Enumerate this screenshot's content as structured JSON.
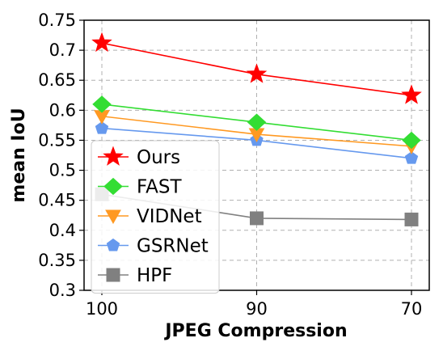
{
  "chart_data": {
    "type": "line",
    "categories": [
      "100",
      "90",
      "70"
    ],
    "xlabel": "JPEG Compression",
    "ylabel": "mean IoU",
    "ylim": [
      0.3,
      0.75
    ],
    "yticks": [
      "0.3",
      "0.35",
      "0.4",
      "0.45",
      "0.5",
      "0.55",
      "0.6",
      "0.65",
      "0.7",
      "0.75"
    ],
    "grid": true,
    "legend_position": "bottom-left",
    "series": [
      {
        "name": "Ours",
        "values": [
          0.712,
          0.66,
          0.625
        ],
        "color": "#ff0000",
        "marker": "star"
      },
      {
        "name": "FAST",
        "values": [
          0.61,
          0.58,
          0.55
        ],
        "color": "#33dd33",
        "marker": "diamond"
      },
      {
        "name": "VIDNet",
        "values": [
          0.59,
          0.56,
          0.54
        ],
        "color": "#ff9922",
        "marker": "triangle-down"
      },
      {
        "name": "GSRNet",
        "values": [
          0.57,
          0.55,
          0.52
        ],
        "color": "#6699ee",
        "marker": "pentagon"
      },
      {
        "name": "HPF",
        "values": [
          0.46,
          0.42,
          0.418
        ],
        "color": "#808080",
        "marker": "square"
      }
    ]
  }
}
